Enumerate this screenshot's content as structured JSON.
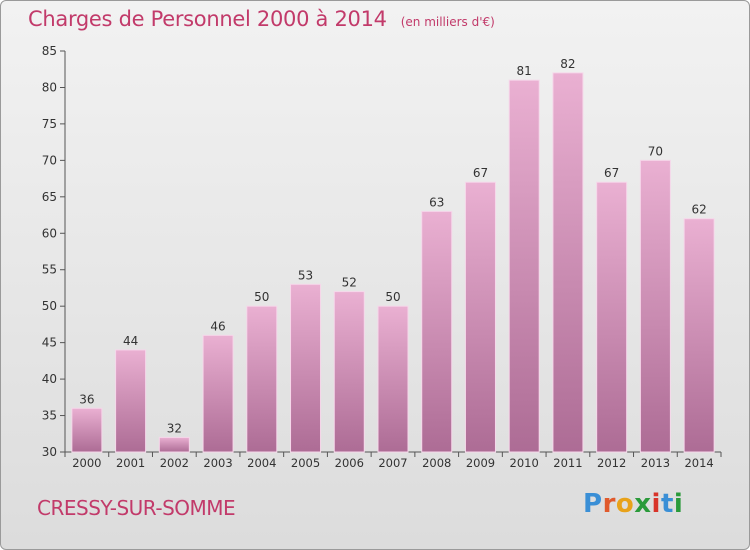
{
  "header": {
    "title": "Charges de Personnel 2000 à 2014",
    "unit": "(en milliers d'€)"
  },
  "footer": {
    "commune": "CRESSY-SUR-SOMME"
  },
  "logo": {
    "letters": [
      "P",
      "r",
      "o",
      "x",
      "i",
      "t",
      "i"
    ],
    "colors": [
      "#3a8fd6",
      "#e05a2c",
      "#e8a21a",
      "#2a9a3a",
      "#d8342a",
      "#3a8fd6",
      "#2a9a3a"
    ]
  },
  "chart_data": {
    "type": "bar",
    "title": "Charges de Personnel 2000 à 2014",
    "subtitle": "(en milliers d'€)",
    "categories": [
      "2000",
      "2001",
      "2002",
      "2003",
      "2004",
      "2005",
      "2006",
      "2007",
      "2008",
      "2009",
      "2010",
      "2011",
      "2012",
      "2013",
      "2014"
    ],
    "values": [
      36,
      44,
      32,
      46,
      50,
      53,
      52,
      50,
      63,
      67,
      81,
      82,
      67,
      70,
      62
    ],
    "ylim": [
      30,
      85
    ],
    "yticks": [
      "30",
      "35",
      "40",
      "45",
      "50",
      "55",
      "60",
      "65",
      "70",
      "75",
      "80",
      "85"
    ],
    "grid": false,
    "bar_color_top": "#eab0d2",
    "bar_color_bottom": "#ad6c95",
    "axis_color": "#555555"
  }
}
